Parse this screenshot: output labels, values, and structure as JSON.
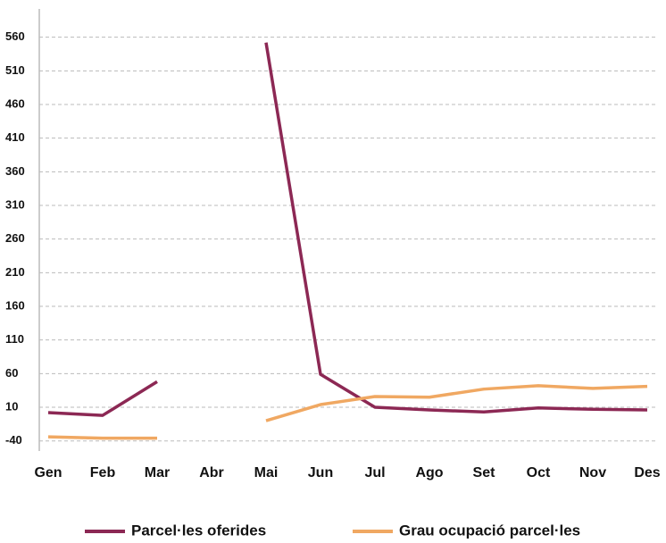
{
  "chart_data": {
    "type": "line",
    "categories": [
      "Gen",
      "Feb",
      "Mar",
      "Abr",
      "Mai",
      "Jun",
      "Jul",
      "Ago",
      "Set",
      "Oct",
      "Nov",
      "Des"
    ],
    "series": [
      {
        "name": "Parcel·les oferides",
        "color": "#8c2854",
        "values": [
          2,
          -2,
          48,
          null,
          552,
          59,
          10,
          6,
          3,
          9,
          7,
          6
        ]
      },
      {
        "name": "Grau ocupació parcel·les",
        "color": "#f0a862",
        "values": [
          -34,
          -36,
          -36,
          null,
          -10,
          14,
          26,
          25,
          37,
          42,
          38,
          41
        ]
      }
    ],
    "ylim": [
      -55,
      602
    ],
    "yticks": [
      -40,
      10,
      60,
      110,
      160,
      210,
      260,
      310,
      360,
      410,
      460,
      510,
      560
    ],
    "grid": true,
    "legend": "bottom"
  }
}
